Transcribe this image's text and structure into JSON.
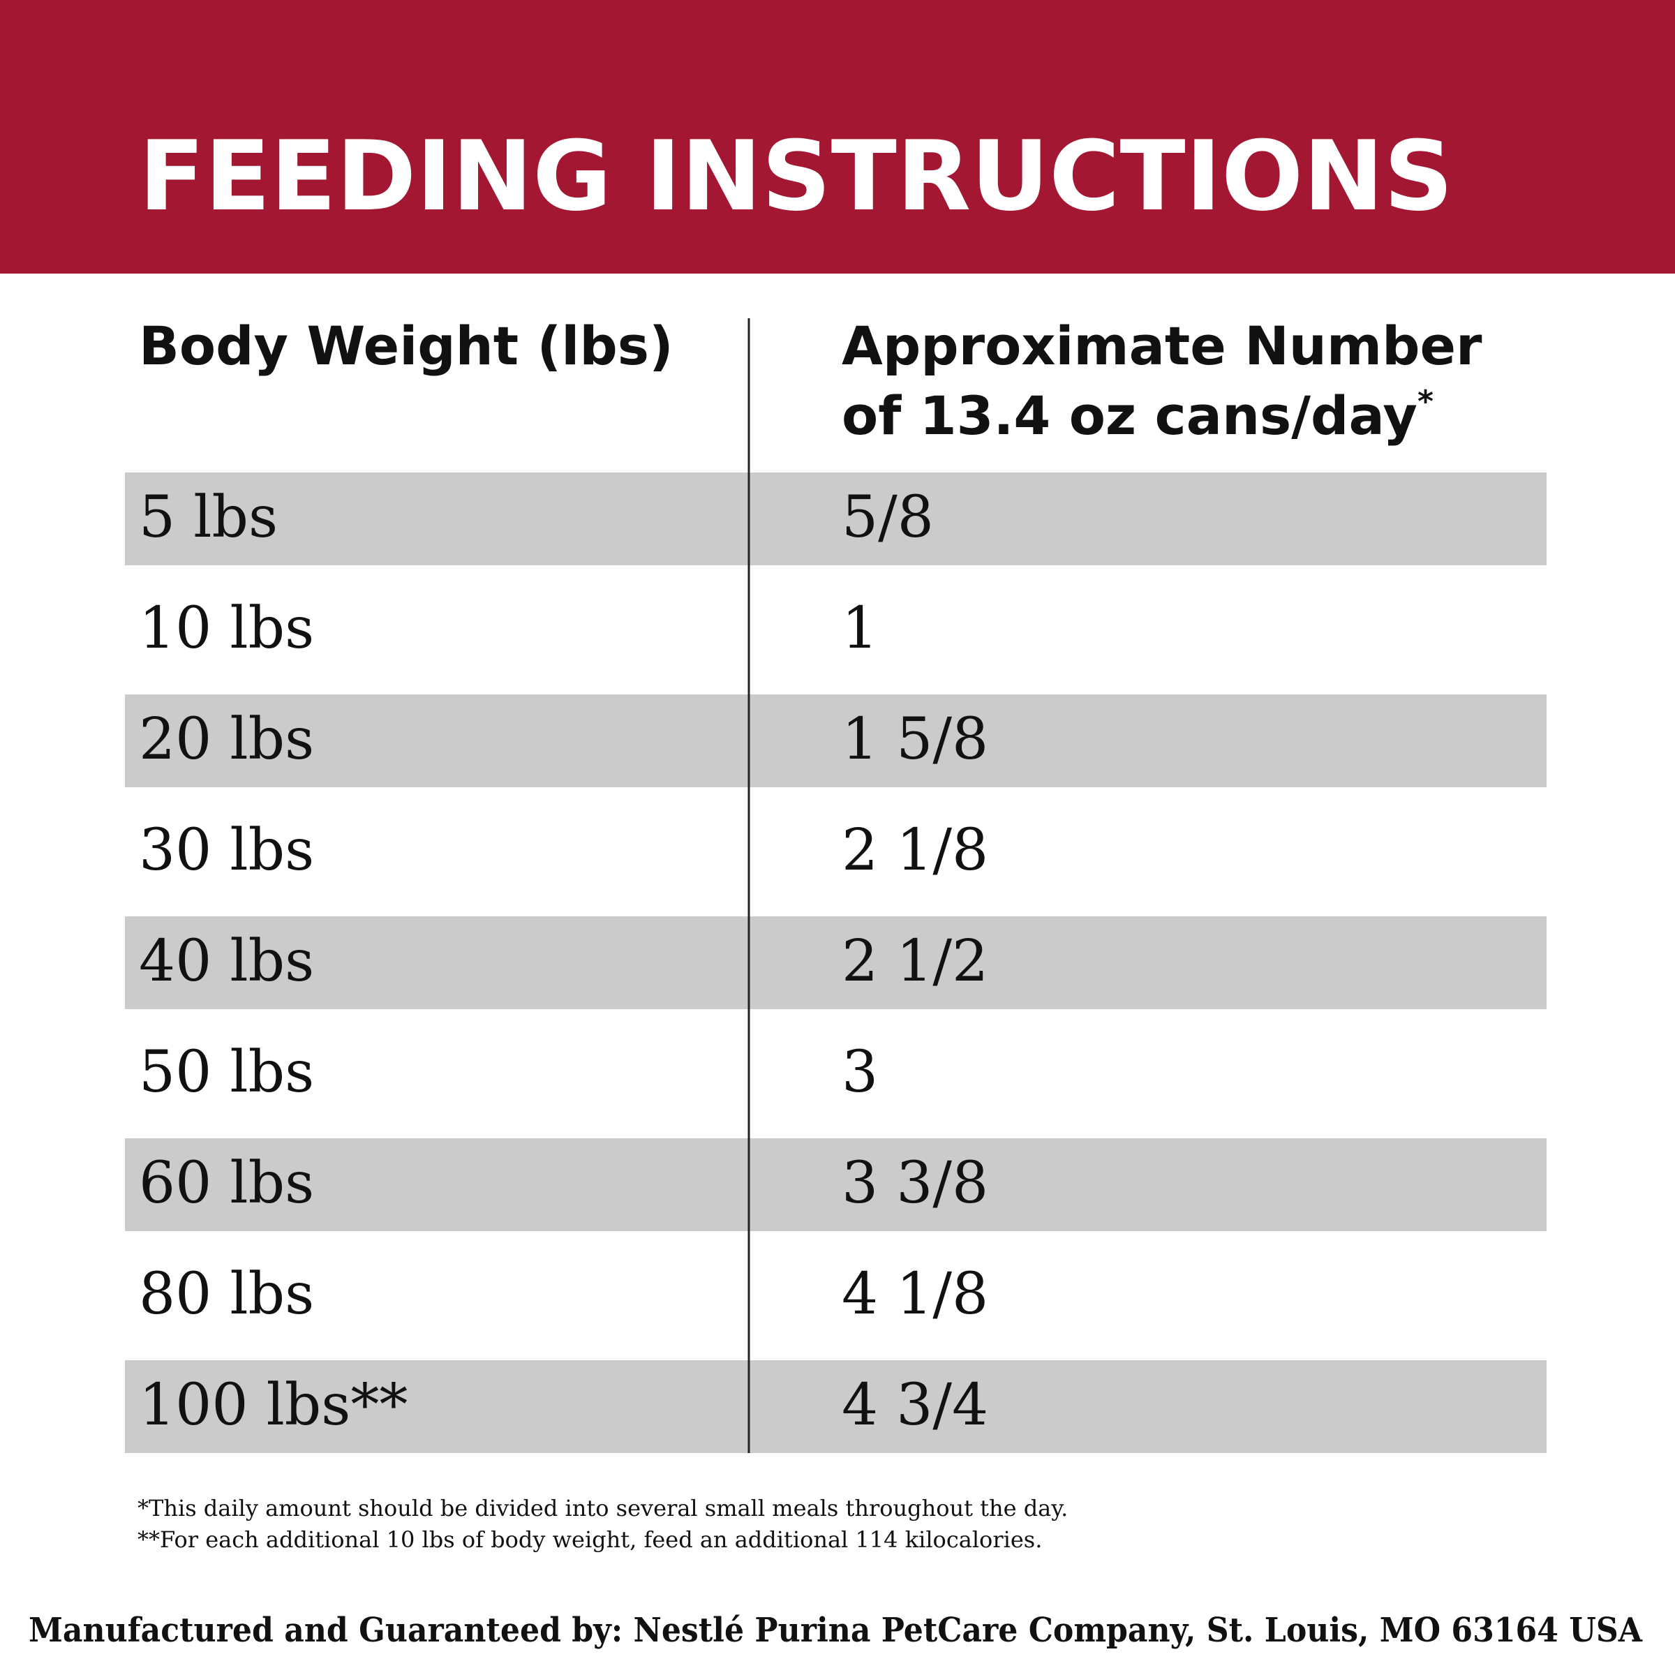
{
  "header": {
    "title": "FEEDING INSTRUCTIONS"
  },
  "table": {
    "columns": [
      {
        "lines": [
          "Body Weight (lbs)"
        ]
      },
      {
        "lines": [
          "Approximate Number",
          "of 13.4 oz cans/day"
        ],
        "note_mark": "*"
      }
    ],
    "rows": [
      [
        "5 lbs",
        "5/8"
      ],
      [
        "10 lbs",
        "1"
      ],
      [
        "20 lbs",
        "1 5/8"
      ],
      [
        "30 lbs",
        "2 1/8"
      ],
      [
        "40 lbs",
        "2 1/2"
      ],
      [
        "50 lbs",
        "3"
      ],
      [
        "60 lbs",
        "3 3/8"
      ],
      [
        "80 lbs",
        "4 1/8"
      ],
      [
        "100 lbs**",
        "4 3/4"
      ]
    ]
  },
  "footnotes": [
    "*This daily amount should be divided into several small meals throughout the day.",
    "**For each additional 10 lbs of body weight, feed an additional 114 kilocalories."
  ],
  "footer": "Manufactured and Guaranteed by: Nestlé Purina PetCare Company, St. Louis, MO 63164 USA"
}
